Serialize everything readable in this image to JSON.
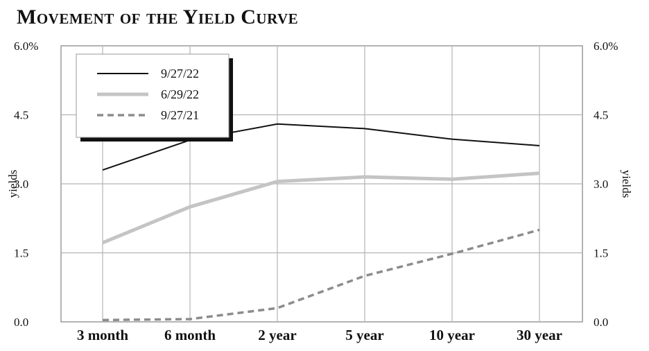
{
  "chart_data": {
    "type": "line",
    "title": "Movement of the Yield Curve",
    "ylabel": "yields",
    "ylabel_right": "yields",
    "categories": [
      "3 month",
      "6 month",
      "2 year",
      "5 year",
      "10 year",
      "30 year"
    ],
    "ylim": [
      0,
      6.0
    ],
    "yticks_left": [
      "0.0",
      "1.5",
      "3.0",
      "4.5",
      "6.0%"
    ],
    "yticks_right": [
      "0.0",
      "1.5",
      "3.0",
      "4.5",
      "6.0%"
    ],
    "ytick_values": [
      0,
      1.5,
      3.0,
      4.5,
      6.0
    ],
    "grid": true,
    "legend_position": "top-left",
    "series": [
      {
        "name": "9/27/22",
        "values": [
          3.3,
          3.95,
          4.3,
          4.2,
          3.97,
          3.83
        ],
        "color": "#111111",
        "style": "solid-thin"
      },
      {
        "name": "6/29/22",
        "values": [
          1.72,
          2.5,
          3.05,
          3.15,
          3.1,
          3.23
        ],
        "color": "#c4c4c4",
        "style": "solid-thick"
      },
      {
        "name": "9/27/21",
        "values": [
          0.04,
          0.06,
          0.3,
          1.0,
          1.48,
          2.0
        ],
        "color": "#8c8c8c",
        "style": "dashed"
      }
    ]
  }
}
